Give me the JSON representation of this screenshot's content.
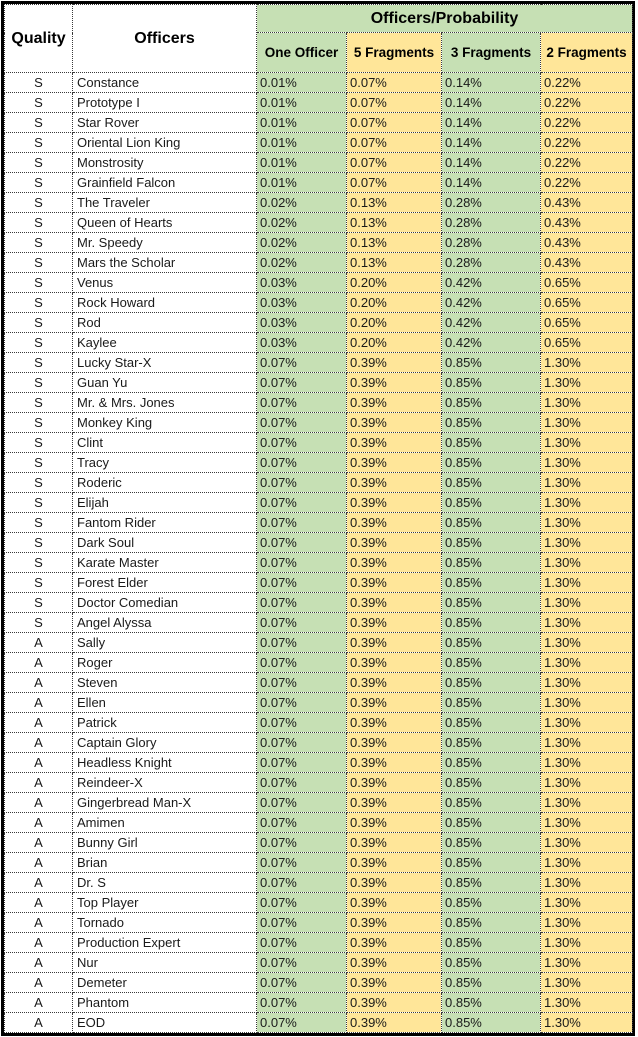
{
  "colors": {
    "header_green": "#c6e0b4",
    "cell_yellow": "#ffe699",
    "border_black": "#000000",
    "text": "#1a1a1a"
  },
  "table": {
    "quality_header": "Quality",
    "officers_header": "Officers",
    "group_header": "Officers/Probability",
    "columns": [
      "One Officer",
      "5 Fragments",
      "3 Fragments",
      "2 Fragments"
    ],
    "rows": [
      {
        "quality": "S",
        "officer": "Constance",
        "values": [
          "0.01%",
          "0.07%",
          "0.14%",
          "0.22%"
        ]
      },
      {
        "quality": "S",
        "officer": "Prototype I",
        "values": [
          "0.01%",
          "0.07%",
          "0.14%",
          "0.22%"
        ]
      },
      {
        "quality": "S",
        "officer": "Star Rover",
        "values": [
          "0.01%",
          "0.07%",
          "0.14%",
          "0.22%"
        ]
      },
      {
        "quality": "S",
        "officer": "Oriental Lion King",
        "values": [
          "0.01%",
          "0.07%",
          "0.14%",
          "0.22%"
        ]
      },
      {
        "quality": "S",
        "officer": "Monstrosity",
        "values": [
          "0.01%",
          "0.07%",
          "0.14%",
          "0.22%"
        ]
      },
      {
        "quality": "S",
        "officer": "Grainfield Falcon",
        "values": [
          "0.01%",
          "0.07%",
          "0.14%",
          "0.22%"
        ]
      },
      {
        "quality": "S",
        "officer": "The Traveler",
        "values": [
          "0.02%",
          "0.13%",
          "0.28%",
          "0.43%"
        ]
      },
      {
        "quality": "S",
        "officer": "Queen of Hearts",
        "values": [
          "0.02%",
          "0.13%",
          "0.28%",
          "0.43%"
        ]
      },
      {
        "quality": "S",
        "officer": "Mr. Speedy",
        "values": [
          "0.02%",
          "0.13%",
          "0.28%",
          "0.43%"
        ]
      },
      {
        "quality": "S",
        "officer": "Mars the Scholar",
        "values": [
          "0.02%",
          "0.13%",
          "0.28%",
          "0.43%"
        ]
      },
      {
        "quality": "S",
        "officer": "Venus",
        "values": [
          "0.03%",
          "0.20%",
          "0.42%",
          "0.65%"
        ]
      },
      {
        "quality": "S",
        "officer": "Rock Howard",
        "values": [
          "0.03%",
          "0.20%",
          "0.42%",
          "0.65%"
        ]
      },
      {
        "quality": "S",
        "officer": "Rod",
        "values": [
          "0.03%",
          "0.20%",
          "0.42%",
          "0.65%"
        ]
      },
      {
        "quality": "S",
        "officer": "Kaylee",
        "values": [
          "0.03%",
          "0.20%",
          "0.42%",
          "0.65%"
        ]
      },
      {
        "quality": "S",
        "officer": "Lucky Star-X",
        "values": [
          "0.07%",
          "0.39%",
          "0.85%",
          "1.30%"
        ]
      },
      {
        "quality": "S",
        "officer": "Guan Yu",
        "values": [
          "0.07%",
          "0.39%",
          "0.85%",
          "1.30%"
        ]
      },
      {
        "quality": "S",
        "officer": "Mr. & Mrs. Jones",
        "values": [
          "0.07%",
          "0.39%",
          "0.85%",
          "1.30%"
        ]
      },
      {
        "quality": "S",
        "officer": "Monkey King",
        "values": [
          "0.07%",
          "0.39%",
          "0.85%",
          "1.30%"
        ]
      },
      {
        "quality": "S",
        "officer": "Clint",
        "values": [
          "0.07%",
          "0.39%",
          "0.85%",
          "1.30%"
        ]
      },
      {
        "quality": "S",
        "officer": "Tracy",
        "values": [
          "0.07%",
          "0.39%",
          "0.85%",
          "1.30%"
        ]
      },
      {
        "quality": "S",
        "officer": "Roderic",
        "values": [
          "0.07%",
          "0.39%",
          "0.85%",
          "1.30%"
        ]
      },
      {
        "quality": "S",
        "officer": "Elijah",
        "values": [
          "0.07%",
          "0.39%",
          "0.85%",
          "1.30%"
        ]
      },
      {
        "quality": "S",
        "officer": "Fantom Rider",
        "values": [
          "0.07%",
          "0.39%",
          "0.85%",
          "1.30%"
        ]
      },
      {
        "quality": "S",
        "officer": "Dark Soul",
        "values": [
          "0.07%",
          "0.39%",
          "0.85%",
          "1.30%"
        ]
      },
      {
        "quality": "S",
        "officer": "Karate Master",
        "values": [
          "0.07%",
          "0.39%",
          "0.85%",
          "1.30%"
        ]
      },
      {
        "quality": "S",
        "officer": "Forest Elder",
        "values": [
          "0.07%",
          "0.39%",
          "0.85%",
          "1.30%"
        ]
      },
      {
        "quality": "S",
        "officer": "Doctor Comedian",
        "values": [
          "0.07%",
          "0.39%",
          "0.85%",
          "1.30%"
        ]
      },
      {
        "quality": "S",
        "officer": "Angel Alyssa",
        "values": [
          "0.07%",
          "0.39%",
          "0.85%",
          "1.30%"
        ]
      },
      {
        "quality": "A",
        "officer": "Sally",
        "values": [
          "0.07%",
          "0.39%",
          "0.85%",
          "1.30%"
        ]
      },
      {
        "quality": "A",
        "officer": "Roger",
        "values": [
          "0.07%",
          "0.39%",
          "0.85%",
          "1.30%"
        ]
      },
      {
        "quality": "A",
        "officer": "Steven",
        "values": [
          "0.07%",
          "0.39%",
          "0.85%",
          "1.30%"
        ]
      },
      {
        "quality": "A",
        "officer": "Ellen",
        "values": [
          "0.07%",
          "0.39%",
          "0.85%",
          "1.30%"
        ]
      },
      {
        "quality": "A",
        "officer": "Patrick",
        "values": [
          "0.07%",
          "0.39%",
          "0.85%",
          "1.30%"
        ]
      },
      {
        "quality": "A",
        "officer": "Captain Glory",
        "values": [
          "0.07%",
          "0.39%",
          "0.85%",
          "1.30%"
        ]
      },
      {
        "quality": "A",
        "officer": "Headless Knight",
        "values": [
          "0.07%",
          "0.39%",
          "0.85%",
          "1.30%"
        ]
      },
      {
        "quality": "A",
        "officer": "Reindeer-X",
        "values": [
          "0.07%",
          "0.39%",
          "0.85%",
          "1.30%"
        ]
      },
      {
        "quality": "A",
        "officer": "Gingerbread Man-X",
        "values": [
          "0.07%",
          "0.39%",
          "0.85%",
          "1.30%"
        ]
      },
      {
        "quality": "A",
        "officer": "Amimen",
        "values": [
          "0.07%",
          "0.39%",
          "0.85%",
          "1.30%"
        ]
      },
      {
        "quality": "A",
        "officer": "Bunny Girl",
        "values": [
          "0.07%",
          "0.39%",
          "0.85%",
          "1.30%"
        ]
      },
      {
        "quality": "A",
        "officer": "Brian",
        "values": [
          "0.07%",
          "0.39%",
          "0.85%",
          "1.30%"
        ]
      },
      {
        "quality": "A",
        "officer": "Dr. S",
        "values": [
          "0.07%",
          "0.39%",
          "0.85%",
          "1.30%"
        ]
      },
      {
        "quality": "A",
        "officer": "Top Player",
        "values": [
          "0.07%",
          "0.39%",
          "0.85%",
          "1.30%"
        ]
      },
      {
        "quality": "A",
        "officer": "Tornado",
        "values": [
          "0.07%",
          "0.39%",
          "0.85%",
          "1.30%"
        ]
      },
      {
        "quality": "A",
        "officer": "Production Expert",
        "values": [
          "0.07%",
          "0.39%",
          "0.85%",
          "1.30%"
        ]
      },
      {
        "quality": "A",
        "officer": "Nur",
        "values": [
          "0.07%",
          "0.39%",
          "0.85%",
          "1.30%"
        ]
      },
      {
        "quality": "A",
        "officer": "Demeter",
        "values": [
          "0.07%",
          "0.39%",
          "0.85%",
          "1.30%"
        ]
      },
      {
        "quality": "A",
        "officer": "Phantom",
        "values": [
          "0.07%",
          "0.39%",
          "0.85%",
          "1.30%"
        ]
      },
      {
        "quality": "A",
        "officer": "EOD",
        "values": [
          "0.07%",
          "0.39%",
          "0.85%",
          "1.30%"
        ]
      }
    ]
  }
}
